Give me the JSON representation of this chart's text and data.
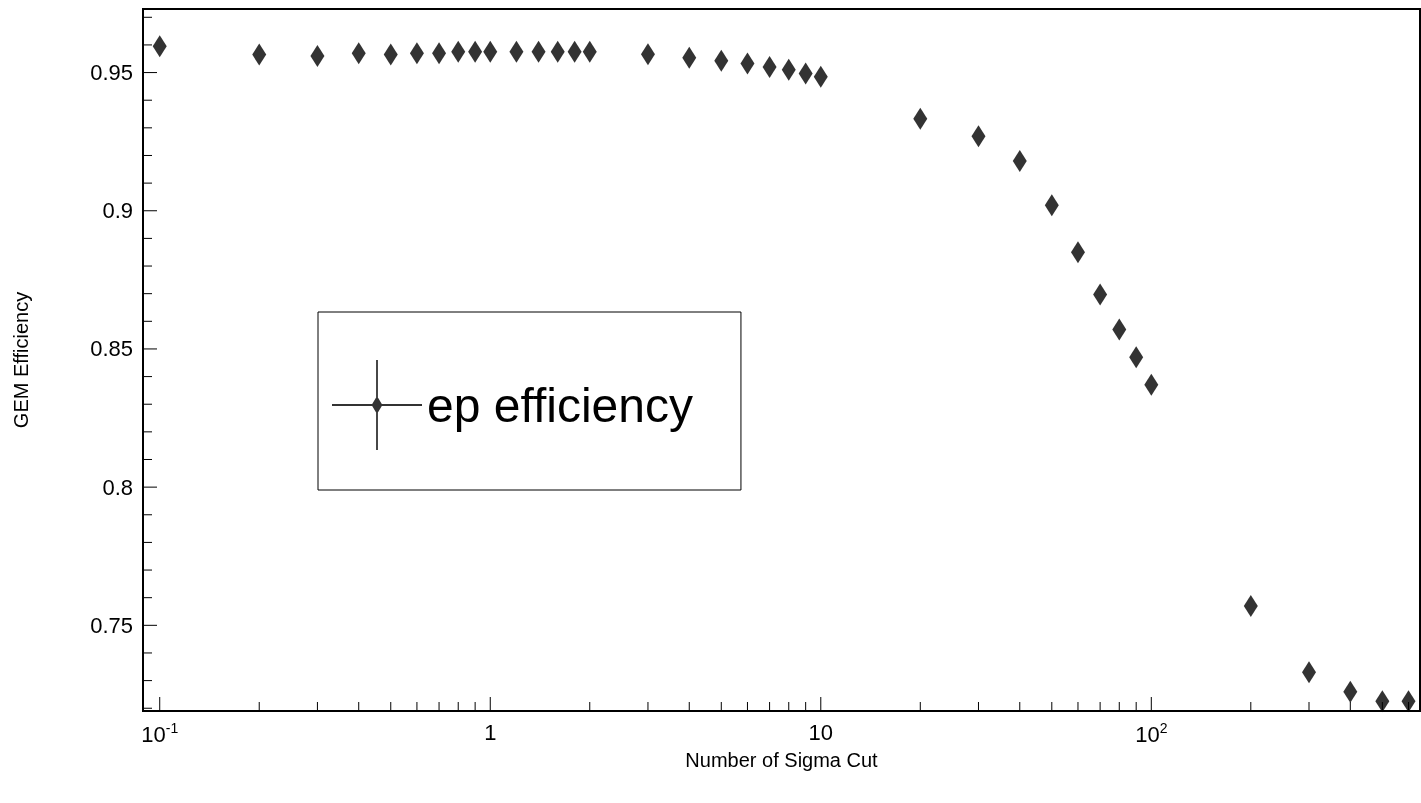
{
  "chart_data": {
    "type": "scatter",
    "xlabel": "Number of Sigma Cut",
    "ylabel": "GEM Efficiency",
    "log": "x",
    "marker": "diamond",
    "legend": "center",
    "grid": false,
    "xlim": [
      0.089,
      650
    ],
    "ylim": [
      0.719,
      0.973
    ],
    "xticks": [
      {
        "value": 0.1,
        "label": "10$^{-1}$"
      },
      {
        "value": 0.2,
        "label": null
      },
      {
        "value": 0.3,
        "label": null
      },
      {
        "value": 0.4,
        "label": null
      },
      {
        "value": 0.5,
        "label": null
      },
      {
        "value": 0.6,
        "label": null
      },
      {
        "value": 0.7,
        "label": null
      },
      {
        "value": 0.8,
        "label": null
      },
      {
        "value": 0.9,
        "label": null
      },
      1,
      {
        "value": 2,
        "label": null
      },
      {
        "value": 3,
        "label": null
      },
      {
        "value": 4,
        "label": null
      },
      {
        "value": 5,
        "label": null
      },
      {
        "value": 6,
        "label": null
      },
      {
        "value": 7,
        "label": null
      },
      {
        "value": 8,
        "label": null
      },
      {
        "value": 9,
        "label": null
      },
      10,
      {
        "value": 20,
        "label": null
      },
      {
        "value": 30,
        "label": null
      },
      {
        "value": 40,
        "label": null
      },
      {
        "value": 50,
        "label": null
      },
      {
        "value": 60,
        "label": null
      },
      {
        "value": 70,
        "label": null
      },
      {
        "value": 80,
        "label": null
      },
      {
        "value": 90,
        "label": null
      },
      {
        "value": 100,
        "label": "10$^{2}$"
      },
      {
        "value": 200,
        "label": null
      },
      {
        "value": 300,
        "label": null
      },
      {
        "value": 400,
        "label": null
      },
      {
        "value": 500,
        "label": null
      },
      {
        "value": 600,
        "label": null
      }
    ],
    "yticks": [
      {
        "value": 0.72,
        "label": null
      },
      {
        "value": 0.73,
        "label": null
      },
      {
        "value": 0.74,
        "label": null
      },
      0.75,
      {
        "value": 0.76,
        "label": null
      },
      {
        "value": 0.77,
        "label": null
      },
      {
        "value": 0.78,
        "label": null
      },
      {
        "value": 0.79,
        "label": null
      },
      0.8,
      {
        "value": 0.81,
        "label": null
      },
      {
        "value": 0.82,
        "label": null
      },
      {
        "value": 0.83,
        "label": null
      },
      {
        "value": 0.84,
        "label": null
      },
      0.85,
      {
        "value": 0.86,
        "label": null
      },
      {
        "value": 0.87,
        "label": null
      },
      {
        "value": 0.88,
        "label": null
      },
      {
        "value": 0.89,
        "label": null
      },
      0.9,
      {
        "value": 0.91,
        "label": null
      },
      {
        "value": 0.92,
        "label": null
      },
      {
        "value": 0.93,
        "label": null
      },
      {
        "value": 0.94,
        "label": null
      },
      0.95,
      {
        "value": 0.96,
        "label": null
      },
      {
        "value": 0.97,
        "label": null
      }
    ],
    "series": [
      {
        "name": "ep efficiency",
        "color": "#000000",
        "x": [
          0.1,
          0.2,
          0.3,
          0.4,
          0.5,
          0.6,
          0.7,
          0.8,
          0.9,
          1,
          1.2,
          1.4,
          1.6,
          1.8,
          2,
          3,
          4,
          5,
          6,
          7,
          8,
          9,
          10,
          20,
          30,
          40,
          50,
          60,
          70,
          80,
          90,
          100,
          200,
          300,
          400,
          500,
          600
        ],
        "values": [
          0.9595,
          0.9565,
          0.956,
          0.957,
          0.9565,
          0.957,
          0.957,
          0.9575,
          0.9575,
          0.9575,
          0.9575,
          0.9575,
          0.9575,
          0.9575,
          0.9575,
          0.9566,
          0.9554,
          0.9543,
          0.9533,
          0.952,
          0.951,
          0.9497,
          0.9485,
          0.9333,
          0.927,
          0.918,
          0.902,
          0.885,
          0.8697,
          0.857,
          0.847,
          0.837,
          0.757,
          0.733,
          0.726,
          0.7225,
          0.7225
        ]
      }
    ]
  }
}
